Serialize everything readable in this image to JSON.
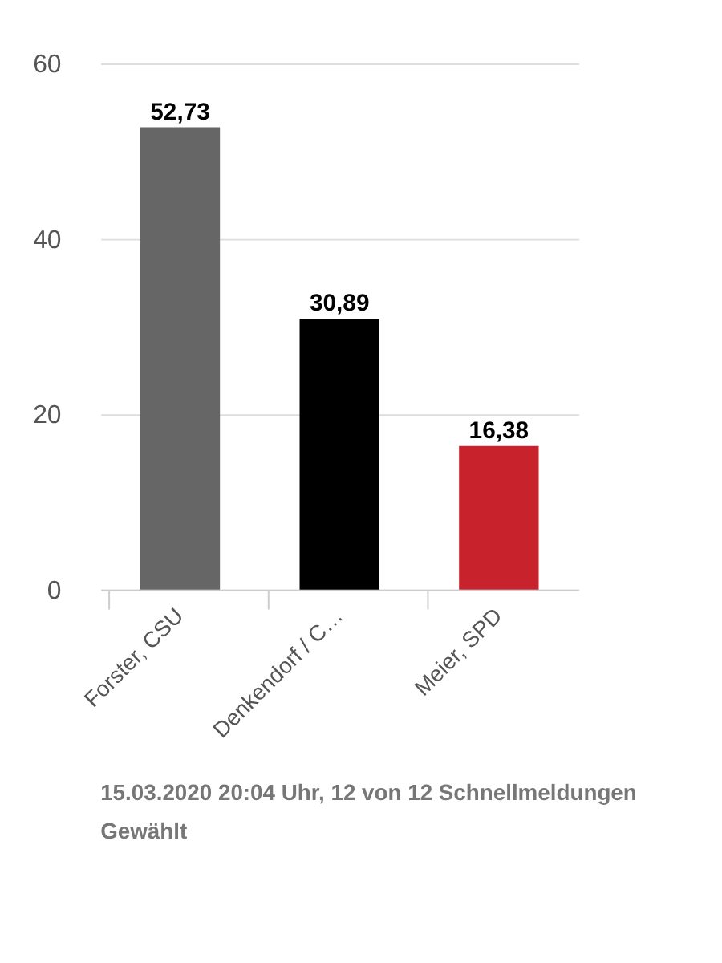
{
  "chart_data": {
    "type": "bar",
    "categories": [
      "Forster, CSU",
      "Denkendorf / C…",
      "Meier, SPD"
    ],
    "values": [
      52.73,
      30.89,
      16.38
    ],
    "colors": [
      "#666666",
      "#000000",
      "#c8232c"
    ],
    "value_labels": [
      "52,73",
      "30,89",
      "16,38"
    ],
    "ylim": [
      0,
      60
    ],
    "yticks": [
      0,
      20,
      40,
      60
    ],
    "grid": "y",
    "annotations": [
      "15.03.2020 20:04 Uhr, 12 von 12 Schnellmeldungen",
      "Gewählt"
    ]
  }
}
